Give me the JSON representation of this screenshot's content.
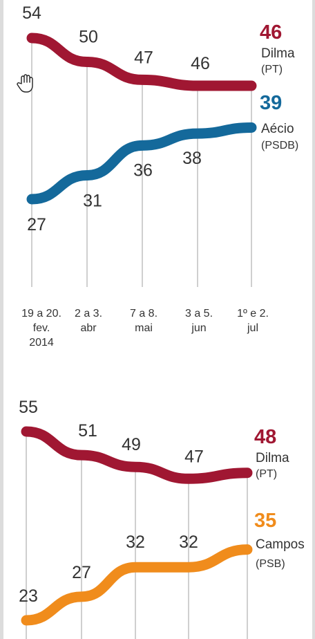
{
  "chart_data": [
    {
      "type": "line",
      "categories": [
        [
          "19 a 20.",
          "fev.",
          "2014"
        ],
        [
          "2 a 3.",
          "abr"
        ],
        [
          "7 a 8.",
          "mai"
        ],
        [
          "3 a 5.",
          "jun"
        ],
        [
          "1º e 2.",
          "jul"
        ]
      ],
      "ylim": [
        15,
        56
      ],
      "series": [
        {
          "name": "Dilma",
          "party": "(PT)",
          "color": "#a01732",
          "values": [
            54,
            50,
            47,
            46,
            46
          ],
          "value_labels": [
            "54",
            "50",
            "47",
            "46",
            ""
          ],
          "end_label": "46"
        },
        {
          "name": "Aécio",
          "party": "(PSDB)",
          "color": "#14699b",
          "values": [
            27,
            31,
            36,
            38,
            39
          ],
          "value_labels": [
            "27",
            "31",
            "36",
            "38",
            ""
          ],
          "end_label": "39"
        }
      ]
    },
    {
      "type": "line",
      "categories": [
        "",
        "",
        "",
        "",
        ""
      ],
      "ylim": [
        20,
        57
      ],
      "series": [
        {
          "name": "Dilma",
          "party": "(PT)",
          "color": "#a01732",
          "values": [
            55,
            51,
            49,
            47,
            48
          ],
          "value_labels": [
            "55",
            "51",
            "49",
            "47",
            ""
          ],
          "end_label": "48"
        },
        {
          "name": "Campos",
          "party": "(PSB)",
          "color": "#f08c1c",
          "values": [
            23,
            27,
            32,
            32,
            35
          ],
          "value_labels": [
            "23",
            "27",
            "32",
            "32",
            ""
          ],
          "end_label": "35"
        }
      ]
    }
  ],
  "icons": {
    "cursor": "hand-cursor-icon"
  }
}
